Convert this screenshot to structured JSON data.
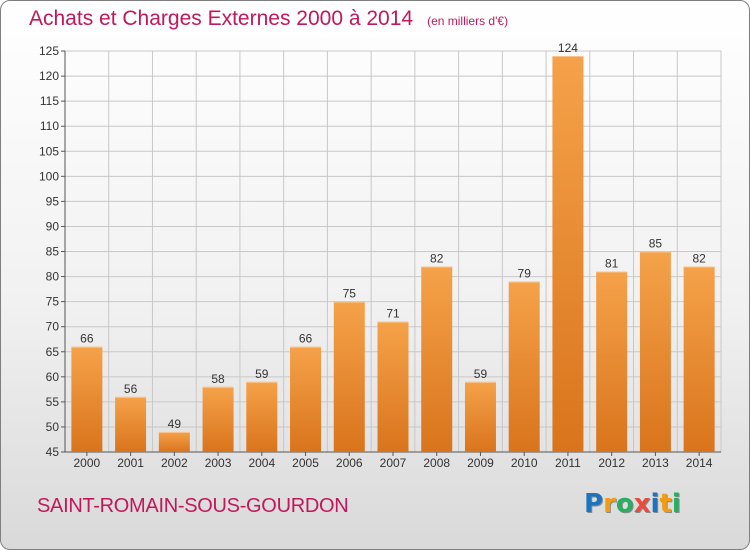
{
  "title": "Achats et Charges Externes 2000 à 2014",
  "unit": "(en milliers d'€)",
  "commune": "SAINT-ROMAIN-SOUS-GOURDON",
  "brand": {
    "letters": [
      "P",
      "r",
      "o",
      "x",
      "i",
      "t",
      "i"
    ],
    "colors": [
      "#1e73be",
      "#f39c12",
      "#27ae60",
      "#e74c3c",
      "#1e73be",
      "#f39c12",
      "#27ae60"
    ]
  },
  "colors": {
    "bar_top": "#f5a24a",
    "bar_bottom": "#d9741c",
    "accent": "#c2185b",
    "grid": "#c8c8c8"
  },
  "chart_data": {
    "type": "bar",
    "title": "Achats et Charges Externes 2000 à 2014",
    "subtitle": "(en milliers d'€)",
    "xlabel": "",
    "ylabel": "",
    "ylim": [
      45,
      125
    ],
    "yticks": [
      45,
      50,
      55,
      60,
      65,
      70,
      75,
      80,
      85,
      90,
      95,
      100,
      105,
      110,
      115,
      120,
      125
    ],
    "grid": true,
    "categories": [
      "2000",
      "2001",
      "2002",
      "2003",
      "2004",
      "2005",
      "2006",
      "2007",
      "2008",
      "2009",
      "2010",
      "2011",
      "2012",
      "2013",
      "2014"
    ],
    "values": [
      66,
      56,
      49,
      58,
      59,
      66,
      75,
      71,
      82,
      59,
      79,
      124,
      81,
      85,
      82
    ]
  }
}
